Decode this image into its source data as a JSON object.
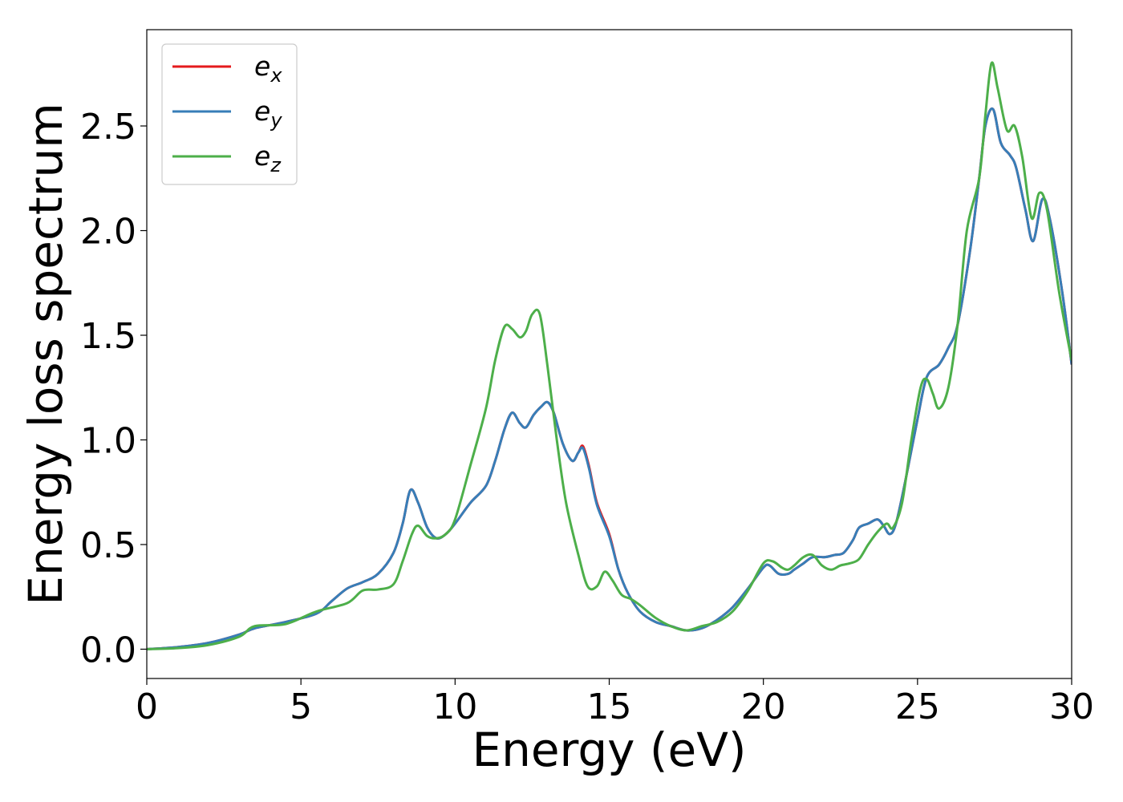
{
  "chart_data": {
    "type": "line",
    "xlabel": "Energy (eV)",
    "ylabel": "Energy loss spectrum",
    "xlim": [
      0,
      30
    ],
    "ylim": [
      -0.14,
      2.96
    ],
    "xticks": [
      0,
      5,
      10,
      15,
      20,
      25,
      30
    ],
    "yticks": [
      0.0,
      0.5,
      1.0,
      1.5,
      2.0,
      2.5
    ],
    "xtick_labels": [
      "0",
      "5",
      "10",
      "15",
      "20",
      "25",
      "30"
    ],
    "ytick_labels": [
      "0.0",
      "0.5",
      "1.0",
      "1.5",
      "2.0",
      "2.5"
    ],
    "grid": false,
    "legend_position": "top-left",
    "series": [
      {
        "name": "e",
        "subscript": "x",
        "color": "#e41a1c",
        "x": [
          0,
          1,
          2,
          3,
          3.5,
          4.5,
          5.5,
          6,
          6.5,
          7,
          7.5,
          8,
          8.3,
          8.55,
          8.8,
          9.1,
          9.4,
          9.7,
          10,
          10.5,
          11,
          11.3,
          11.6,
          11.85,
          12.1,
          12.3,
          12.55,
          12.8,
          13,
          13.2,
          13.5,
          13.8,
          14,
          14.15,
          14.35,
          14.6,
          15,
          15.3,
          15.6,
          16,
          16.5,
          17,
          17.5,
          18,
          18.5,
          19,
          19.5,
          20,
          20.2,
          20.5,
          20.8,
          21,
          21.3,
          21.6,
          22,
          22.3,
          22.6,
          22.9,
          23.1,
          23.4,
          23.7,
          23.9,
          24.1,
          24.3,
          24.6,
          25,
          25.3,
          25.7,
          26,
          26.3,
          26.7,
          27,
          27.2,
          27.45,
          27.7,
          28,
          28.2,
          28.5,
          28.75,
          29.05,
          29.3,
          29.7,
          30
        ],
        "y": [
          0.0,
          0.01,
          0.03,
          0.07,
          0.1,
          0.13,
          0.17,
          0.23,
          0.29,
          0.32,
          0.36,
          0.46,
          0.6,
          0.76,
          0.7,
          0.58,
          0.53,
          0.55,
          0.6,
          0.7,
          0.78,
          0.9,
          1.05,
          1.13,
          1.08,
          1.06,
          1.12,
          1.16,
          1.18,
          1.13,
          0.98,
          0.9,
          0.94,
          0.97,
          0.87,
          0.7,
          0.55,
          0.38,
          0.27,
          0.18,
          0.13,
          0.11,
          0.09,
          0.1,
          0.14,
          0.2,
          0.29,
          0.39,
          0.4,
          0.36,
          0.36,
          0.38,
          0.41,
          0.44,
          0.44,
          0.45,
          0.46,
          0.52,
          0.58,
          0.6,
          0.62,
          0.59,
          0.55,
          0.6,
          0.8,
          1.1,
          1.3,
          1.36,
          1.44,
          1.55,
          1.9,
          2.25,
          2.5,
          2.58,
          2.42,
          2.36,
          2.3,
          2.1,
          1.95,
          2.15,
          2.05,
          1.7,
          1.36
        ]
      },
      {
        "name": "e",
        "subscript": "y",
        "color": "#377eb8",
        "x": [
          0,
          1,
          2,
          3,
          3.5,
          4.5,
          5.5,
          6,
          6.5,
          7,
          7.5,
          8,
          8.3,
          8.55,
          8.8,
          9.1,
          9.4,
          9.7,
          10,
          10.5,
          11,
          11.3,
          11.6,
          11.85,
          12.1,
          12.3,
          12.55,
          12.8,
          13,
          13.2,
          13.5,
          13.8,
          14,
          14.15,
          14.35,
          14.6,
          15,
          15.3,
          15.6,
          16,
          16.5,
          17,
          17.5,
          18,
          18.5,
          19,
          19.5,
          20,
          20.2,
          20.5,
          20.8,
          21,
          21.3,
          21.6,
          22,
          22.3,
          22.6,
          22.9,
          23.1,
          23.4,
          23.7,
          23.9,
          24.1,
          24.3,
          24.6,
          25,
          25.3,
          25.7,
          26,
          26.3,
          26.7,
          27,
          27.2,
          27.45,
          27.7,
          28,
          28.2,
          28.5,
          28.75,
          29.05,
          29.3,
          29.7,
          30
        ],
        "y": [
          0.0,
          0.01,
          0.03,
          0.07,
          0.1,
          0.13,
          0.17,
          0.23,
          0.29,
          0.32,
          0.36,
          0.46,
          0.6,
          0.76,
          0.7,
          0.58,
          0.53,
          0.55,
          0.6,
          0.7,
          0.78,
          0.9,
          1.05,
          1.13,
          1.08,
          1.06,
          1.12,
          1.16,
          1.18,
          1.13,
          0.98,
          0.9,
          0.94,
          0.96,
          0.86,
          0.69,
          0.54,
          0.38,
          0.27,
          0.18,
          0.13,
          0.11,
          0.09,
          0.1,
          0.14,
          0.2,
          0.29,
          0.39,
          0.4,
          0.36,
          0.36,
          0.38,
          0.41,
          0.44,
          0.44,
          0.45,
          0.46,
          0.52,
          0.58,
          0.6,
          0.62,
          0.59,
          0.55,
          0.6,
          0.8,
          1.1,
          1.3,
          1.36,
          1.44,
          1.55,
          1.9,
          2.25,
          2.5,
          2.58,
          2.42,
          2.36,
          2.3,
          2.1,
          1.95,
          2.15,
          2.05,
          1.7,
          1.36
        ]
      },
      {
        "name": "e",
        "subscript": "z",
        "color": "#4daf4a",
        "x": [
          0,
          1,
          2,
          3,
          3.5,
          4.5,
          5.5,
          6.5,
          7,
          7.5,
          8,
          8.3,
          8.6,
          8.8,
          9.1,
          9.4,
          9.7,
          10,
          10.5,
          11,
          11.3,
          11.6,
          11.85,
          12.1,
          12.3,
          12.5,
          12.75,
          13,
          13.3,
          13.6,
          14,
          14.3,
          14.6,
          14.85,
          15.1,
          15.4,
          15.7,
          16,
          16.5,
          17,
          17.5,
          18,
          18.5,
          19,
          19.5,
          20,
          20.3,
          20.6,
          20.8,
          21,
          21.3,
          21.6,
          21.9,
          22.2,
          22.5,
          22.8,
          23.1,
          23.4,
          23.7,
          24,
          24.2,
          24.5,
          24.8,
          25.1,
          25.3,
          25.5,
          25.7,
          26,
          26.3,
          26.6,
          27,
          27.2,
          27.4,
          27.6,
          27.9,
          28.15,
          28.4,
          28.7,
          28.95,
          29.2,
          29.6,
          30
        ],
        "y": [
          0.0,
          0.005,
          0.02,
          0.06,
          0.11,
          0.12,
          0.18,
          0.22,
          0.28,
          0.285,
          0.31,
          0.42,
          0.55,
          0.59,
          0.54,
          0.53,
          0.55,
          0.62,
          0.88,
          1.15,
          1.38,
          1.54,
          1.53,
          1.49,
          1.52,
          1.6,
          1.6,
          1.35,
          1.0,
          0.7,
          0.45,
          0.3,
          0.3,
          0.37,
          0.33,
          0.26,
          0.24,
          0.21,
          0.15,
          0.11,
          0.09,
          0.11,
          0.13,
          0.18,
          0.28,
          0.41,
          0.42,
          0.39,
          0.38,
          0.4,
          0.44,
          0.45,
          0.4,
          0.38,
          0.4,
          0.41,
          0.43,
          0.5,
          0.56,
          0.6,
          0.58,
          0.7,
          1.0,
          1.25,
          1.29,
          1.22,
          1.15,
          1.25,
          1.55,
          2.0,
          2.25,
          2.55,
          2.8,
          2.68,
          2.48,
          2.5,
          2.35,
          2.06,
          2.18,
          2.1,
          1.7,
          1.38
        ]
      }
    ]
  }
}
